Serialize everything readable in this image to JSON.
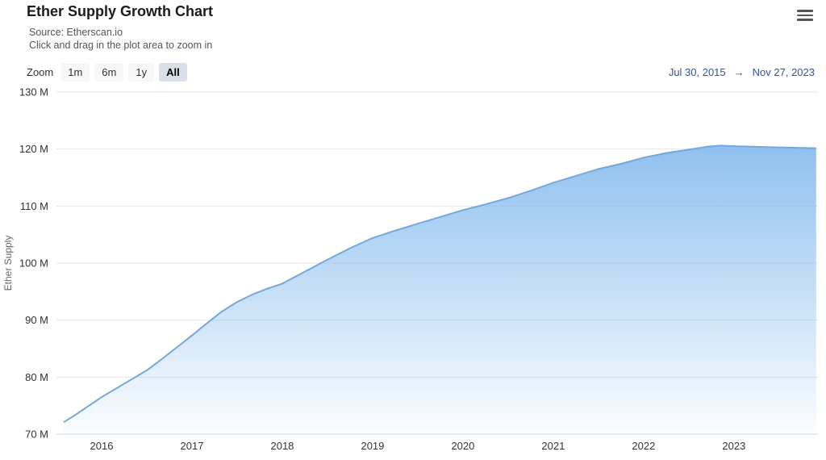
{
  "header": {
    "title": "Ether Supply Growth Chart",
    "source_line": "Source: Etherscan.io",
    "hint_line": "Click and drag in the plot area to zoom in"
  },
  "toolbar": {
    "zoom_label": "Zoom",
    "buttons": [
      {
        "label": "1m",
        "selected": false
      },
      {
        "label": "6m",
        "selected": false
      },
      {
        "label": "1y",
        "selected": false
      },
      {
        "label": "All",
        "selected": true
      }
    ],
    "range_from": "Jul 30, 2015",
    "range_arrow": "→",
    "range_to": "Nov 27, 2023"
  },
  "chart_data": {
    "type": "area",
    "title": "Ether Supply Growth Chart",
    "ylabel": "Ether Supply",
    "xlabel": "",
    "unit": "M",
    "legend": "none",
    "grid": "horizontal",
    "xlim": [
      2015.5,
      2023.93
    ],
    "ylim": [
      70,
      130
    ],
    "xticks": [
      2016,
      2017,
      2018,
      2019,
      2020,
      2021,
      2022,
      2023
    ],
    "yticks": [
      {
        "value": 70,
        "label": "70 M"
      },
      {
        "value": 80,
        "label": "80 M"
      },
      {
        "value": 90,
        "label": "90 M"
      },
      {
        "value": 100,
        "label": "100 M"
      },
      {
        "value": 110,
        "label": "110 M"
      },
      {
        "value": 120,
        "label": "120 M"
      },
      {
        "value": 130,
        "label": "130 M"
      }
    ],
    "series": [
      {
        "name": "Ether Supply",
        "points": [
          [
            2015.58,
            72.1
          ],
          [
            2015.72,
            73.5
          ],
          [
            2015.86,
            75.0
          ],
          [
            2016.0,
            76.5
          ],
          [
            2016.17,
            78.1
          ],
          [
            2016.33,
            79.6
          ],
          [
            2016.5,
            81.2
          ],
          [
            2016.67,
            83.2
          ],
          [
            2016.83,
            85.2
          ],
          [
            2017.0,
            87.3
          ],
          [
            2017.17,
            89.5
          ],
          [
            2017.33,
            91.5
          ],
          [
            2017.5,
            93.2
          ],
          [
            2017.67,
            94.5
          ],
          [
            2017.83,
            95.5
          ],
          [
            2018.0,
            96.4
          ],
          [
            2018.25,
            98.5
          ],
          [
            2018.5,
            100.6
          ],
          [
            2018.75,
            102.6
          ],
          [
            2019.0,
            104.4
          ],
          [
            2019.25,
            105.7
          ],
          [
            2019.5,
            106.9
          ],
          [
            2019.75,
            108.1
          ],
          [
            2020.0,
            109.3
          ],
          [
            2020.25,
            110.3
          ],
          [
            2020.5,
            111.4
          ],
          [
            2020.75,
            112.7
          ],
          [
            2021.0,
            114.1
          ],
          [
            2021.25,
            115.3
          ],
          [
            2021.5,
            116.5
          ],
          [
            2021.75,
            117.4
          ],
          [
            2022.0,
            118.5
          ],
          [
            2022.25,
            119.3
          ],
          [
            2022.5,
            119.9
          ],
          [
            2022.7,
            120.4
          ],
          [
            2022.85,
            120.6
          ],
          [
            2023.0,
            120.5
          ],
          [
            2023.2,
            120.42
          ],
          [
            2023.4,
            120.32
          ],
          [
            2023.6,
            120.25
          ],
          [
            2023.75,
            120.2
          ],
          [
            2023.91,
            120.15
          ]
        ]
      }
    ],
    "colors": {
      "line": "#74a7db",
      "area_top": "rgba(124,181,236,0.85)",
      "area_bottom": "rgba(124,181,236,0.03)",
      "grid": "#e6e6e6",
      "axis_line": "#ccd6eb",
      "tick_text": "#333333",
      "date_text": "#33519e"
    }
  }
}
